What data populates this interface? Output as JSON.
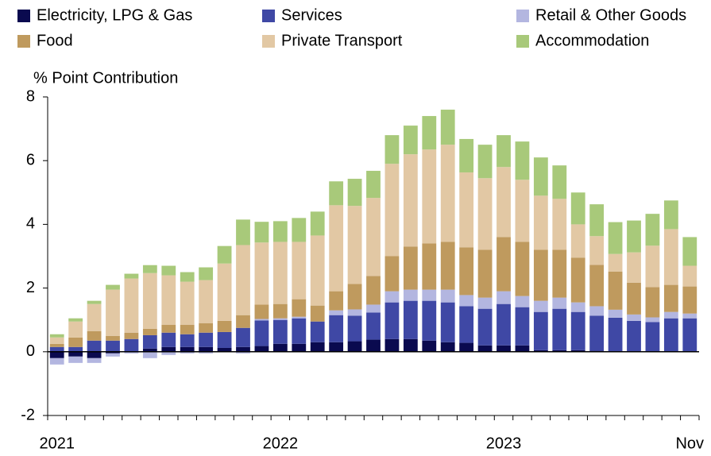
{
  "chart_data": {
    "type": "stacked_bar",
    "y_label": "% Point Contribution",
    "categories": [
      "2021",
      null,
      null,
      null,
      null,
      null,
      null,
      null,
      null,
      null,
      null,
      null,
      "2022",
      null,
      null,
      null,
      null,
      null,
      null,
      null,
      null,
      null,
      null,
      null,
      "2023",
      null,
      null,
      null,
      null,
      null,
      null,
      null,
      null,
      null,
      "Nov"
    ],
    "ylim": [
      -2,
      8
    ],
    "yticks": [
      -2,
      0,
      2,
      4,
      6,
      8
    ],
    "grid": false,
    "series": [
      {
        "name": "Electricity, LPG & Gas",
        "color": "#0a0a4f",
        "values": [
          -0.2,
          -0.15,
          -0.2,
          -0.05,
          0,
          0.1,
          0.15,
          0.15,
          0.15,
          0.12,
          0.15,
          0.18,
          0.25,
          0.25,
          0.3,
          0.3,
          0.33,
          0.38,
          0.4,
          0.4,
          0.35,
          0.3,
          0.28,
          0.2,
          0.2,
          0.2,
          0.05,
          0.05,
          0.05,
          0.03,
          0.02,
          0.02,
          0,
          0,
          0
        ]
      },
      {
        "name": "Services",
        "color": "#3f48a5",
        "values": [
          0.15,
          0.15,
          0.35,
          0.35,
          0.4,
          0.42,
          0.45,
          0.4,
          0.45,
          0.5,
          0.6,
          0.8,
          0.75,
          0.8,
          0.65,
          0.85,
          0.8,
          0.85,
          1.15,
          1.2,
          1.25,
          1.25,
          1.15,
          1.15,
          1.3,
          1.2,
          1.2,
          1.3,
          1.2,
          1.1,
          1.05,
          0.95,
          0.93,
          1.05,
          1.05
        ]
      },
      {
        "name": "Retail & Other Goods",
        "color": "#b3b6e0",
        "values": [
          -0.2,
          -0.2,
          -0.15,
          -0.1,
          -0.05,
          -0.2,
          -0.1,
          -0.05,
          -0.05,
          0,
          -0.05,
          0.05,
          0.05,
          0.05,
          0,
          0.15,
          0.2,
          0.25,
          0.35,
          0.35,
          0.35,
          0.4,
          0.35,
          0.35,
          0.4,
          0.35,
          0.35,
          0.35,
          0.3,
          0.3,
          0.25,
          0.2,
          0.15,
          0.2,
          0.15
        ]
      },
      {
        "name": "Food",
        "color": "#bf9a5e",
        "values": [
          0.1,
          0.3,
          0.3,
          0.15,
          0.2,
          0.2,
          0.25,
          0.3,
          0.3,
          0.35,
          0.4,
          0.45,
          0.45,
          0.55,
          0.5,
          0.6,
          0.8,
          0.9,
          1.1,
          1.35,
          1.45,
          1.5,
          1.5,
          1.5,
          1.7,
          1.7,
          1.6,
          1.5,
          1.4,
          1.3,
          1.2,
          1.0,
          0.95,
          0.85,
          0.85
        ]
      },
      {
        "name": "Private Transport",
        "color": "#e2c8a4",
        "values": [
          0.2,
          0.5,
          0.85,
          1.45,
          1.7,
          1.75,
          1.55,
          1.35,
          1.35,
          1.8,
          2.2,
          1.95,
          1.95,
          1.8,
          2.2,
          2.7,
          2.45,
          2.45,
          2.9,
          2.9,
          2.95,
          3.05,
          2.35,
          2.25,
          2.2,
          1.95,
          1.7,
          1.6,
          1.05,
          0.9,
          0.55,
          0.95,
          1.3,
          1.75,
          0.65
        ]
      },
      {
        "name": "Accommodation",
        "color": "#a8c97a",
        "values": [
          0.1,
          0.1,
          0.1,
          0.15,
          0.15,
          0.25,
          0.3,
          0.3,
          0.4,
          0.55,
          0.8,
          0.65,
          0.65,
          0.75,
          0.75,
          0.75,
          0.85,
          0.85,
          0.9,
          0.9,
          1.05,
          1.1,
          1.05,
          1.05,
          1.0,
          1.2,
          1.2,
          1.05,
          1.0,
          1.0,
          1.0,
          1.0,
          1.0,
          0.9,
          0.9
        ]
      }
    ]
  }
}
